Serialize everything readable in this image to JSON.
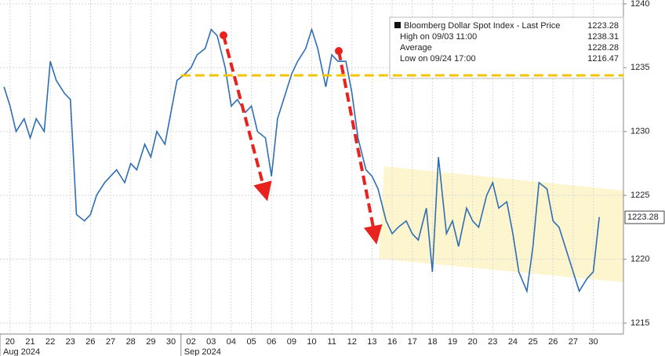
{
  "chart_data": {
    "type": "line",
    "x": [
      0.2,
      0.5,
      0.8,
      1.2,
      1.5,
      1.8,
      2.2,
      2.5,
      2.8,
      3.2,
      3.5,
      3.8,
      4.2,
      4.5,
      4.8,
      5.2,
      5.5,
      5.8,
      6.2,
      6.5,
      6.8,
      7.2,
      7.5,
      7.8,
      8.2,
      8.5,
      8.8,
      9.2,
      9.5,
      9.8,
      10.2,
      10.5,
      10.8,
      11.2,
      11.5,
      11.8,
      12.2,
      12.5,
      12.8,
      13.2,
      13.5,
      13.8,
      14.2,
      14.5,
      14.8,
      15.2,
      15.5,
      15.8,
      16.2,
      16.5,
      16.8,
      17.2,
      17.5,
      17.8,
      18.2,
      18.5,
      18.8,
      19.2,
      19.5,
      19.8,
      20.2,
      20.5,
      20.8,
      21.2,
      21.5,
      21.8,
      22.2,
      22.5,
      22.8,
      23.2,
      23.5,
      23.8,
      24.2,
      24.5,
      24.8,
      25.2,
      25.5,
      25.8,
      26.2,
      26.5,
      26.8,
      27.2,
      27.5,
      27.8,
      28.2,
      28.5,
      28.8,
      29.2,
      29.5,
      29.8
    ],
    "series": [
      {
        "name": "Bloomberg Dollar Spot Index - Last Price",
        "color": "#2f6db5",
        "values": [
          1233.5,
          1232,
          1230,
          1231,
          1229.5,
          1231,
          1230,
          1235.5,
          1234,
          1233,
          1232.5,
          1223.5,
          1223,
          1223.5,
          1225,
          1226,
          1226.5,
          1227,
          1226,
          1227.5,
          1227,
          1229,
          1228,
          1230,
          1229,
          1231.5,
          1234,
          1234.5,
          1235,
          1236,
          1236.5,
          1238,
          1237.5,
          1235,
          1232,
          1232.5,
          1231.5,
          1232,
          1230,
          1229.5,
          1226.5,
          1231,
          1233,
          1234.5,
          1235.5,
          1236.5,
          1238,
          1236.5,
          1233.5,
          1236,
          1235.5,
          1235.5,
          1233,
          1229.5,
          1227,
          1226.5,
          1225.5,
          1223,
          1222,
          1222.5,
          1223,
          1222,
          1221.5,
          1224,
          1219,
          1228,
          1222,
          1223,
          1221,
          1224,
          1223,
          1222.5,
          1225,
          1226,
          1224,
          1224.5,
          1222,
          1219,
          1217.5,
          1221,
          1226,
          1225.5,
          1223,
          1222.5,
          1220.5,
          1219,
          1217.5,
          1218.5,
          1219,
          1223.3
        ]
      }
    ],
    "xlim": [
      0,
      31
    ],
    "xticks": [
      {
        "value": 0.5,
        "label": "20"
      },
      {
        "value": 1.5,
        "label": "21"
      },
      {
        "value": 2.5,
        "label": "22"
      },
      {
        "value": 3.5,
        "label": "23"
      },
      {
        "value": 4.5,
        "label": "26"
      },
      {
        "value": 5.5,
        "label": "27"
      },
      {
        "value": 6.5,
        "label": "28"
      },
      {
        "value": 7.5,
        "label": "29"
      },
      {
        "value": 8.5,
        "label": "30"
      },
      {
        "value": 9.5,
        "label": "02"
      },
      {
        "value": 10.5,
        "label": "03"
      },
      {
        "value": 11.5,
        "label": "04"
      },
      {
        "value": 12.5,
        "label": "05"
      },
      {
        "value": 13.5,
        "label": "06"
      },
      {
        "value": 14.5,
        "label": "09"
      },
      {
        "value": 15.5,
        "label": "10"
      },
      {
        "value": 16.5,
        "label": "11"
      },
      {
        "value": 17.5,
        "label": "12"
      },
      {
        "value": 18.5,
        "label": "13"
      },
      {
        "value": 19.5,
        "label": "16"
      },
      {
        "value": 20.5,
        "label": "17"
      },
      {
        "value": 21.5,
        "label": "18"
      },
      {
        "value": 22.5,
        "label": "19"
      },
      {
        "value": 23.5,
        "label": "20"
      },
      {
        "value": 24.5,
        "label": "23"
      },
      {
        "value": 25.5,
        "label": "24"
      },
      {
        "value": 26.5,
        "label": "25"
      },
      {
        "value": 27.5,
        "label": "26"
      },
      {
        "value": 28.5,
        "label": "27"
      },
      {
        "value": 29.5,
        "label": "30"
      }
    ],
    "months": [
      {
        "label": "Aug 2024",
        "start": 0,
        "end": 9
      },
      {
        "label": "Sep 2024",
        "start": 9,
        "end": 31
      }
    ],
    "ylim": [
      1214.2,
      1240.3
    ],
    "yticks": [
      1215,
      1220,
      1225,
      1230,
      1235,
      1240
    ],
    "grid": true,
    "hline": {
      "value": 1234.4,
      "start": 9,
      "color": "#f5c400"
    },
    "legend": [
      {
        "label": "Bloomberg Dollar Spot Index - Last Price",
        "value": 1223.28
      },
      {
        "label": "High on 09/03 11:00",
        "value": 1238.31
      },
      {
        "label": "Average",
        "value": 1228.28
      },
      {
        "label": "Low on 09/24 17:00",
        "value": 1216.47
      }
    ],
    "last_price": 1223.28
  }
}
